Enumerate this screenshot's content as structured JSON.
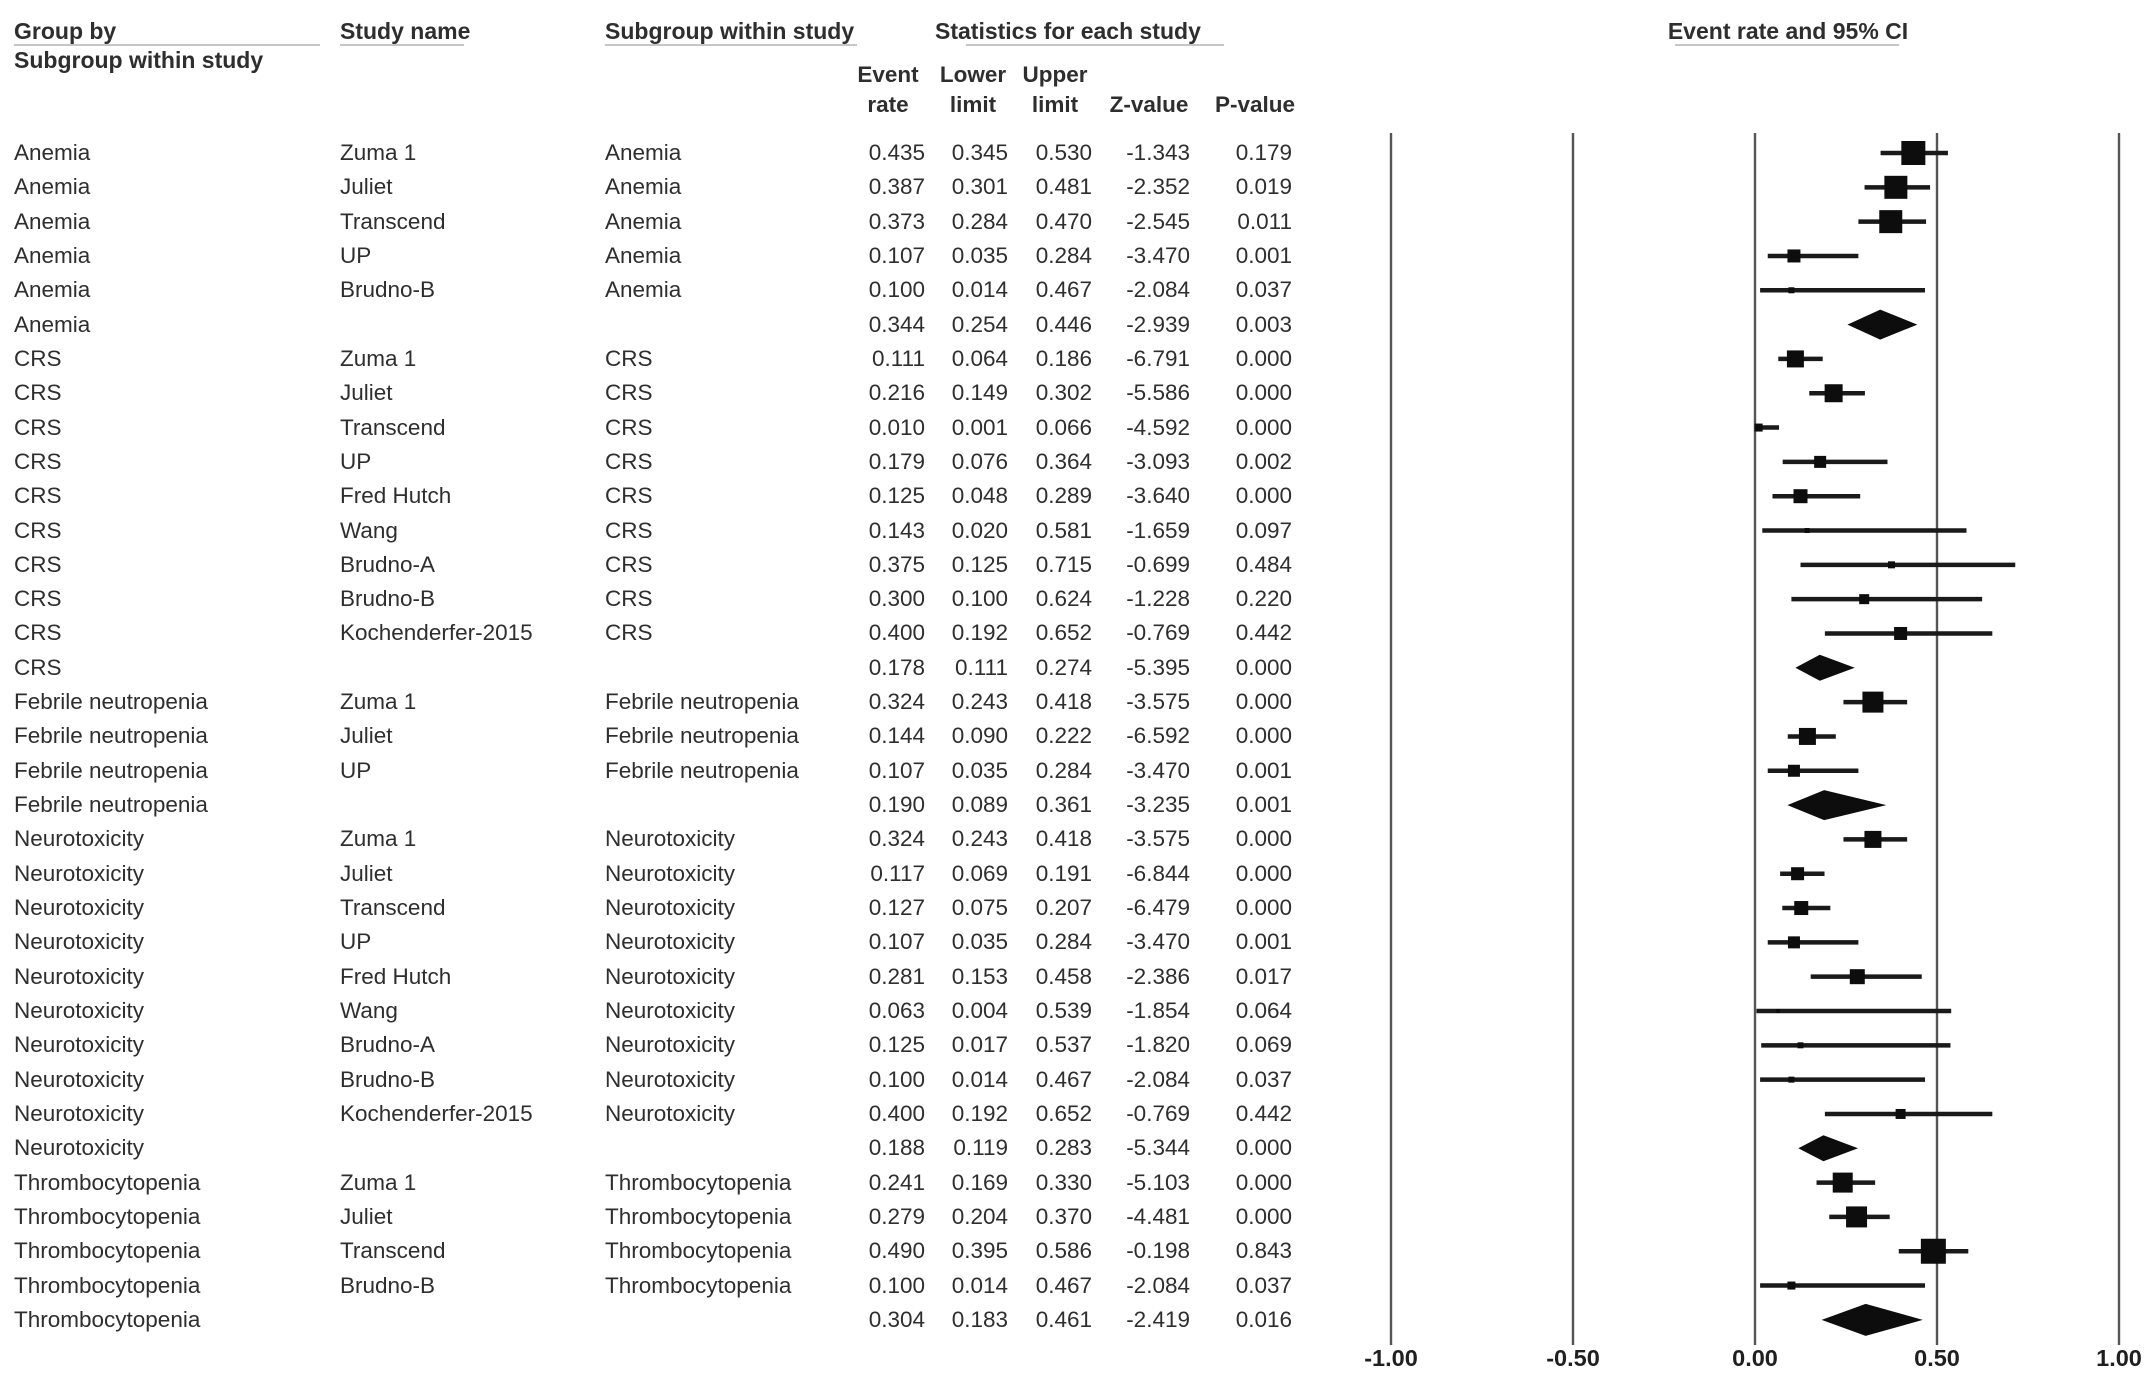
{
  "figure": {
    "headers": {
      "group_by_line1": "Group by",
      "group_by_line2": "Subgroup within study",
      "study_name": "Study name",
      "subgroup": "Subgroup within study",
      "statistics": "Statistics for each study",
      "plot_title": "Event rate and 95% CI"
    },
    "stat_columns": [
      {
        "line1": "Event",
        "line2": "rate"
      },
      {
        "line1": "Lower",
        "line2": "limit"
      },
      {
        "line1": "Upper",
        "line2": "limit"
      },
      {
        "line1": "",
        "line2": "Z-value"
      },
      {
        "line1": "",
        "line2": "P-value"
      }
    ],
    "colors": {
      "text": "#2e2e2e",
      "gridline": "#555555",
      "marker": "#0d0d0d",
      "ci_line": "#1a1a1a",
      "underline": "#c6c6c6"
    }
  },
  "chart_data": {
    "type": "forest",
    "title": "Event rate and 95% CI",
    "x_axis": {
      "min": -1.0,
      "max": 1.0,
      "tick_values": [
        -1.0,
        -0.5,
        0.0,
        0.5,
        1.0
      ],
      "tick_labels": [
        "-1.00",
        "-0.50",
        "0.00",
        "0.50",
        "1.00"
      ],
      "grid": true
    },
    "groups": [
      "Anemia",
      "CRS",
      "Febrile neutropenia",
      "Neurotoxicity",
      "Thrombocytopenia"
    ],
    "rows": [
      {
        "group": "Anemia",
        "study": "Zuma 1",
        "subgroup": "Anemia",
        "event_rate": "0.435",
        "lower_limit": "0.345",
        "upper_limit": "0.530",
        "z_value": "-1.343",
        "p_value": "0.179",
        "kind": "study",
        "marker_size": 24
      },
      {
        "group": "Anemia",
        "study": "Juliet",
        "subgroup": "Anemia",
        "event_rate": "0.387",
        "lower_limit": "0.301",
        "upper_limit": "0.481",
        "z_value": "-2.352",
        "p_value": "0.019",
        "kind": "study",
        "marker_size": 23
      },
      {
        "group": "Anemia",
        "study": "Transcend",
        "subgroup": "Anemia",
        "event_rate": "0.373",
        "lower_limit": "0.284",
        "upper_limit": "0.470",
        "z_value": "-2.545",
        "p_value": "0.011",
        "kind": "study",
        "marker_size": 23
      },
      {
        "group": "Anemia",
        "study": "UP",
        "subgroup": "Anemia",
        "event_rate": "0.107",
        "lower_limit": "0.035",
        "upper_limit": "0.284",
        "z_value": "-3.470",
        "p_value": "0.001",
        "kind": "study",
        "marker_size": 13
      },
      {
        "group": "Anemia",
        "study": "Brudno-B",
        "subgroup": "Anemia",
        "event_rate": "0.100",
        "lower_limit": "0.014",
        "upper_limit": "0.467",
        "z_value": "-2.084",
        "p_value": "0.037",
        "kind": "study",
        "marker_size": 6
      },
      {
        "group": "Anemia",
        "study": "",
        "subgroup": "",
        "event_rate": "0.344",
        "lower_limit": "0.254",
        "upper_limit": "0.446",
        "z_value": "-2.939",
        "p_value": "0.003",
        "kind": "summary",
        "diamond_height": 30
      },
      {
        "group": "CRS",
        "study": "Zuma 1",
        "subgroup": "CRS",
        "event_rate": "0.111",
        "lower_limit": "0.064",
        "upper_limit": "0.186",
        "z_value": "-6.791",
        "p_value": "0.000",
        "kind": "study",
        "marker_size": 17
      },
      {
        "group": "CRS",
        "study": "Juliet",
        "subgroup": "CRS",
        "event_rate": "0.216",
        "lower_limit": "0.149",
        "upper_limit": "0.302",
        "z_value": "-5.586",
        "p_value": "0.000",
        "kind": "study",
        "marker_size": 18
      },
      {
        "group": "CRS",
        "study": "Transcend",
        "subgroup": "CRS",
        "event_rate": "0.010",
        "lower_limit": "0.001",
        "upper_limit": "0.066",
        "z_value": "-4.592",
        "p_value": "0.000",
        "kind": "study",
        "marker_size": 8
      },
      {
        "group": "CRS",
        "study": "UP",
        "subgroup": "CRS",
        "event_rate": "0.179",
        "lower_limit": "0.076",
        "upper_limit": "0.364",
        "z_value": "-3.093",
        "p_value": "0.002",
        "kind": "study",
        "marker_size": 12
      },
      {
        "group": "CRS",
        "study": "Fred Hutch",
        "subgroup": "CRS",
        "event_rate": "0.125",
        "lower_limit": "0.048",
        "upper_limit": "0.289",
        "z_value": "-3.640",
        "p_value": "0.000",
        "kind": "study",
        "marker_size": 14
      },
      {
        "group": "CRS",
        "study": "Wang",
        "subgroup": "CRS",
        "event_rate": "0.143",
        "lower_limit": "0.020",
        "upper_limit": "0.581",
        "z_value": "-1.659",
        "p_value": "0.097",
        "kind": "study",
        "marker_size": 5
      },
      {
        "group": "CRS",
        "study": "Brudno-A",
        "subgroup": "CRS",
        "event_rate": "0.375",
        "lower_limit": "0.125",
        "upper_limit": "0.715",
        "z_value": "-0.699",
        "p_value": "0.484",
        "kind": "study",
        "marker_size": 7
      },
      {
        "group": "CRS",
        "study": "Brudno-B",
        "subgroup": "CRS",
        "event_rate": "0.300",
        "lower_limit": "0.100",
        "upper_limit": "0.624",
        "z_value": "-1.228",
        "p_value": "0.220",
        "kind": "study",
        "marker_size": 10
      },
      {
        "group": "CRS",
        "study": "Kochenderfer-2015",
        "subgroup": "CRS",
        "event_rate": "0.400",
        "lower_limit": "0.192",
        "upper_limit": "0.652",
        "z_value": "-0.769",
        "p_value": "0.442",
        "kind": "study",
        "marker_size": 13
      },
      {
        "group": "CRS",
        "study": "",
        "subgroup": "",
        "event_rate": "0.178",
        "lower_limit": "0.111",
        "upper_limit": "0.274",
        "z_value": "-5.395",
        "p_value": "0.000",
        "kind": "summary",
        "diamond_height": 26
      },
      {
        "group": "Febrile neutropenia",
        "study": "Zuma 1",
        "subgroup": "Febrile neutropenia",
        "event_rate": "0.324",
        "lower_limit": "0.243",
        "upper_limit": "0.418",
        "z_value": "-3.575",
        "p_value": "0.000",
        "kind": "study",
        "marker_size": 21
      },
      {
        "group": "Febrile neutropenia",
        "study": "Juliet",
        "subgroup": "Febrile neutropenia",
        "event_rate": "0.144",
        "lower_limit": "0.090",
        "upper_limit": "0.222",
        "z_value": "-6.592",
        "p_value": "0.000",
        "kind": "study",
        "marker_size": 17
      },
      {
        "group": "Febrile neutropenia",
        "study": "UP",
        "subgroup": "Febrile neutropenia",
        "event_rate": "0.107",
        "lower_limit": "0.035",
        "upper_limit": "0.284",
        "z_value": "-3.470",
        "p_value": "0.001",
        "kind": "study",
        "marker_size": 12
      },
      {
        "group": "Febrile neutropenia",
        "study": "",
        "subgroup": "",
        "event_rate": "0.190",
        "lower_limit": "0.089",
        "upper_limit": "0.361",
        "z_value": "-3.235",
        "p_value": "0.001",
        "kind": "summary",
        "diamond_height": 30
      },
      {
        "group": "Neurotoxicity",
        "study": "Zuma 1",
        "subgroup": "Neurotoxicity",
        "event_rate": "0.324",
        "lower_limit": "0.243",
        "upper_limit": "0.418",
        "z_value": "-3.575",
        "p_value": "0.000",
        "kind": "study",
        "marker_size": 17
      },
      {
        "group": "Neurotoxicity",
        "study": "Juliet",
        "subgroup": "Neurotoxicity",
        "event_rate": "0.117",
        "lower_limit": "0.069",
        "upper_limit": "0.191",
        "z_value": "-6.844",
        "p_value": "0.000",
        "kind": "study",
        "marker_size": 13
      },
      {
        "group": "Neurotoxicity",
        "study": "Transcend",
        "subgroup": "Neurotoxicity",
        "event_rate": "0.127",
        "lower_limit": "0.075",
        "upper_limit": "0.207",
        "z_value": "-6.479",
        "p_value": "0.000",
        "kind": "study",
        "marker_size": 14
      },
      {
        "group": "Neurotoxicity",
        "study": "UP",
        "subgroup": "Neurotoxicity",
        "event_rate": "0.107",
        "lower_limit": "0.035",
        "upper_limit": "0.284",
        "z_value": "-3.470",
        "p_value": "0.001",
        "kind": "study",
        "marker_size": 12
      },
      {
        "group": "Neurotoxicity",
        "study": "Fred Hutch",
        "subgroup": "Neurotoxicity",
        "event_rate": "0.281",
        "lower_limit": "0.153",
        "upper_limit": "0.458",
        "z_value": "-2.386",
        "p_value": "0.017",
        "kind": "study",
        "marker_size": 15
      },
      {
        "group": "Neurotoxicity",
        "study": "Wang",
        "subgroup": "Neurotoxicity",
        "event_rate": "0.063",
        "lower_limit": "0.004",
        "upper_limit": "0.539",
        "z_value": "-1.854",
        "p_value": "0.064",
        "kind": "study",
        "marker_size": 4
      },
      {
        "group": "Neurotoxicity",
        "study": "Brudno-A",
        "subgroup": "Neurotoxicity",
        "event_rate": "0.125",
        "lower_limit": "0.017",
        "upper_limit": "0.537",
        "z_value": "-1.820",
        "p_value": "0.069",
        "kind": "study",
        "marker_size": 6
      },
      {
        "group": "Neurotoxicity",
        "study": "Brudno-B",
        "subgroup": "Neurotoxicity",
        "event_rate": "0.100",
        "lower_limit": "0.014",
        "upper_limit": "0.467",
        "z_value": "-2.084",
        "p_value": "0.037",
        "kind": "study",
        "marker_size": 6
      },
      {
        "group": "Neurotoxicity",
        "study": "Kochenderfer-2015",
        "subgroup": "Neurotoxicity",
        "event_rate": "0.400",
        "lower_limit": "0.192",
        "upper_limit": "0.652",
        "z_value": "-0.769",
        "p_value": "0.442",
        "kind": "study",
        "marker_size": 10
      },
      {
        "group": "Neurotoxicity",
        "study": "",
        "subgroup": "",
        "event_rate": "0.188",
        "lower_limit": "0.119",
        "upper_limit": "0.283",
        "z_value": "-5.344",
        "p_value": "0.000",
        "kind": "summary",
        "diamond_height": 26
      },
      {
        "group": "Thrombocytopenia",
        "study": "Zuma 1",
        "subgroup": "Thrombocytopenia",
        "event_rate": "0.241",
        "lower_limit": "0.169",
        "upper_limit": "0.330",
        "z_value": "-5.103",
        "p_value": "0.000",
        "kind": "study",
        "marker_size": 20
      },
      {
        "group": "Thrombocytopenia",
        "study": "Juliet",
        "subgroup": "Thrombocytopenia",
        "event_rate": "0.279",
        "lower_limit": "0.204",
        "upper_limit": "0.370",
        "z_value": "-4.481",
        "p_value": "0.000",
        "kind": "study",
        "marker_size": 21
      },
      {
        "group": "Thrombocytopenia",
        "study": "Transcend",
        "subgroup": "Thrombocytopenia",
        "event_rate": "0.490",
        "lower_limit": "0.395",
        "upper_limit": "0.586",
        "z_value": "-0.198",
        "p_value": "0.843",
        "kind": "study",
        "marker_size": 25
      },
      {
        "group": "Thrombocytopenia",
        "study": "Brudno-B",
        "subgroup": "Thrombocytopenia",
        "event_rate": "0.100",
        "lower_limit": "0.014",
        "upper_limit": "0.467",
        "z_value": "-2.084",
        "p_value": "0.037",
        "kind": "study",
        "marker_size": 8
      },
      {
        "group": "Thrombocytopenia",
        "study": "",
        "subgroup": "",
        "event_rate": "0.304",
        "lower_limit": "0.183",
        "upper_limit": "0.461",
        "z_value": "-2.419",
        "p_value": "0.016",
        "kind": "summary",
        "diamond_height": 32
      }
    ]
  }
}
